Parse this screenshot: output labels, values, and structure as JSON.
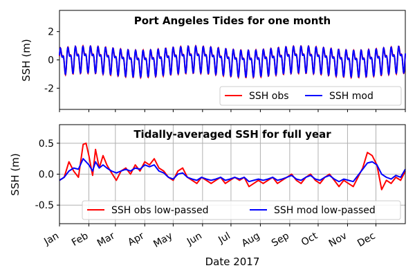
{
  "chart_data": [
    {
      "type": "line",
      "title": "Port Angeles Tides for one month",
      "xlabel": "",
      "ylabel": "SSH (m)",
      "ylim": [
        -3.5,
        3.5
      ],
      "yticks": [
        -2,
        0,
        2
      ],
      "xlim_days": [
        0,
        365
      ],
      "grid": false,
      "legend_position": "bottom-right",
      "legend_columns": 2,
      "series": [
        {
          "name": "SSH obs",
          "color": "#ff0000",
          "description": "mixed semidiurnal tide, range about -1.2 to 1.1 m",
          "peak_cycles": 46,
          "amplitude_main": 0.75,
          "amplitude_secondary": 0.4
        },
        {
          "name": "SSH mod",
          "color": "#0000ff",
          "description": "modeled tide closely tracking observations",
          "peak_cycles": 46,
          "amplitude_main": 0.72,
          "amplitude_secondary": 0.42
        }
      ]
    },
    {
      "type": "line",
      "title": "Tidally-averaged SSH for full year",
      "xlabel": "Date 2017",
      "ylabel": "SSH (m)",
      "ylim": [
        -0.8,
        0.8
      ],
      "yticks": [
        -0.5,
        0.0,
        0.5
      ],
      "xlim_days": [
        0,
        365
      ],
      "grid": true,
      "legend_position": "bottom-center",
      "legend_columns": 2,
      "categories": [
        "Jan",
        "Feb",
        "Mar",
        "Apr",
        "May",
        "Jun",
        "Jul",
        "Aug",
        "Sep",
        "Oct",
        "Nov",
        "Dec"
      ],
      "month_start_days": [
        0,
        31,
        59,
        90,
        120,
        151,
        181,
        212,
        243,
        273,
        304,
        334
      ],
      "series": [
        {
          "name": "SSH obs low-passed",
          "color": "#ff0000",
          "x": [
            0,
            5,
            10,
            15,
            20,
            25,
            28,
            31,
            35,
            38,
            42,
            46,
            50,
            55,
            60,
            65,
            70,
            75,
            80,
            85,
            90,
            95,
            100,
            105,
            110,
            115,
            120,
            125,
            130,
            135,
            140,
            145,
            150,
            155,
            160,
            165,
            170,
            175,
            180,
            185,
            190,
            195,
            200,
            205,
            210,
            215,
            220,
            225,
            230,
            235,
            240,
            245,
            250,
            255,
            260,
            265,
            270,
            275,
            280,
            285,
            290,
            295,
            300,
            305,
            310,
            315,
            320,
            325,
            330,
            335,
            340,
            345,
            350,
            355,
            360,
            365
          ],
          "values": [
            -0.1,
            -0.05,
            0.2,
            0.05,
            -0.05,
            0.48,
            0.5,
            0.3,
            -0.02,
            0.4,
            0.1,
            0.3,
            0.15,
            0.02,
            -0.1,
            0.05,
            0.1,
            0.0,
            0.15,
            0.05,
            0.2,
            0.15,
            0.25,
            0.1,
            0.05,
            -0.05,
            -0.1,
            0.05,
            0.1,
            -0.05,
            -0.1,
            -0.15,
            -0.05,
            -0.1,
            -0.15,
            -0.1,
            -0.05,
            -0.15,
            -0.1,
            -0.05,
            -0.1,
            -0.05,
            -0.2,
            -0.15,
            -0.1,
            -0.15,
            -0.1,
            -0.05,
            -0.15,
            -0.1,
            -0.05,
            0.0,
            -0.1,
            -0.15,
            -0.05,
            0.0,
            -0.1,
            -0.15,
            -0.05,
            0.0,
            -0.1,
            -0.2,
            -0.1,
            -0.15,
            -0.2,
            -0.05,
            0.1,
            0.35,
            0.3,
            0.15,
            -0.25,
            -0.1,
            -0.15,
            -0.05,
            -0.1,
            0.05
          ]
        },
        {
          "name": "SSH mod low-passed",
          "color": "#0000ff",
          "x": [
            0,
            5,
            10,
            15,
            20,
            25,
            28,
            31,
            35,
            38,
            42,
            46,
            50,
            55,
            60,
            65,
            70,
            75,
            80,
            85,
            90,
            95,
            100,
            105,
            110,
            115,
            120,
            125,
            130,
            135,
            140,
            145,
            150,
            155,
            160,
            165,
            170,
            175,
            180,
            185,
            190,
            195,
            200,
            205,
            210,
            215,
            220,
            225,
            230,
            235,
            240,
            245,
            250,
            255,
            260,
            265,
            270,
            275,
            280,
            285,
            290,
            295,
            300,
            305,
            310,
            315,
            320,
            325,
            330,
            335,
            340,
            345,
            350,
            355,
            360,
            365
          ],
          "values": [
            -0.1,
            -0.05,
            0.05,
            0.1,
            0.08,
            0.25,
            0.2,
            0.15,
            0.05,
            0.2,
            0.1,
            0.15,
            0.1,
            0.05,
            0.02,
            0.05,
            0.08,
            0.05,
            0.1,
            0.08,
            0.15,
            0.12,
            0.15,
            0.05,
            0.02,
            -0.05,
            -0.08,
            0.0,
            0.02,
            -0.05,
            -0.08,
            -0.1,
            -0.05,
            -0.08,
            -0.1,
            -0.08,
            -0.05,
            -0.1,
            -0.08,
            -0.05,
            -0.08,
            -0.05,
            -0.12,
            -0.1,
            -0.08,
            -0.1,
            -0.08,
            -0.05,
            -0.1,
            -0.08,
            -0.05,
            -0.02,
            -0.08,
            -0.1,
            -0.05,
            -0.02,
            -0.08,
            -0.1,
            -0.05,
            -0.02,
            -0.08,
            -0.12,
            -0.08,
            -0.1,
            -0.12,
            -0.02,
            0.08,
            0.18,
            0.2,
            0.15,
            0.0,
            -0.05,
            -0.08,
            -0.02,
            -0.05,
            0.08
          ]
        }
      ]
    }
  ]
}
